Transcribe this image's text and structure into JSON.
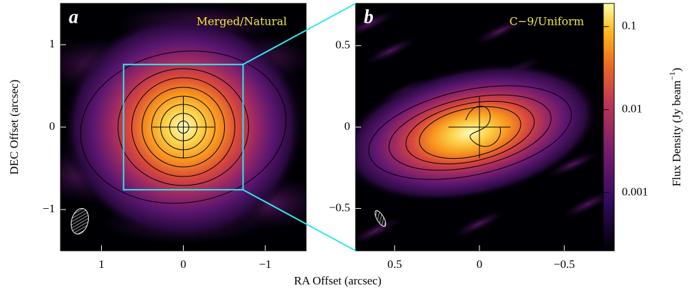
{
  "chart_data": [
    {
      "type": "image",
      "panel": "a",
      "title": "Merged/Natural",
      "xlim": [
        1.5,
        -1.5
      ],
      "ylim": [
        -1.5,
        1.5
      ],
      "xticks": [
        1,
        0,
        {
          "value": -1,
          "label": "−1"
        }
      ],
      "yticks": [
        {
          "value": -1,
          "label": "−1"
        },
        0,
        1
      ]
    },
    {
      "type": "image",
      "panel": "b",
      "title": "C−9/Uniform",
      "xlim": [
        0.73,
        -0.73
      ],
      "ylim": [
        -0.76,
        0.76
      ],
      "xticks": [
        0.5,
        0,
        {
          "value": -0.5,
          "label": "−0.5"
        }
      ],
      "yticks": [
        {
          "value": -0.5,
          "label": "−0.5"
        },
        0,
        0.5
      ]
    }
  ],
  "figure": {
    "xlabel": "RA Offset (arcsec)",
    "ylabel": "DEC Offset (arcsec)",
    "colorbar": {
      "label": "Flux Density (Jy beam",
      "label_sup": "−1",
      "label_end": ")",
      "log": true,
      "lim": [
        0.0002,
        0.19
      ],
      "ticks": [
        0.001,
        0.01,
        0.1
      ]
    }
  }
}
